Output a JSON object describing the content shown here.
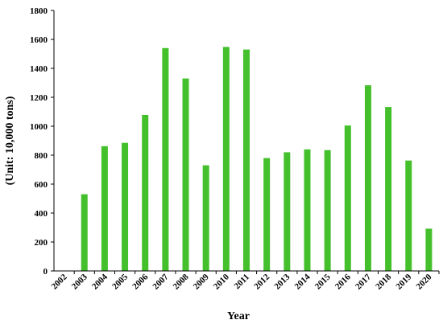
{
  "chart_data": {
    "type": "bar",
    "title": "",
    "xlabel": "Year",
    "ylabel": "(Unit: 10,000 tons)",
    "categories": [
      "2002",
      "2003",
      "2004",
      "2005",
      "2006",
      "2007",
      "2008",
      "2009",
      "2010",
      "2011",
      "2012",
      "2013",
      "2014",
      "2015",
      "2016",
      "2017",
      "2018",
      "2019",
      "2020"
    ],
    "values": [
      0,
      530,
      862,
      885,
      1078,
      1540,
      1330,
      730,
      1548,
      1530,
      780,
      820,
      840,
      835,
      1005,
      1283,
      1133,
      763,
      292
    ],
    "ylim": [
      0,
      1800
    ],
    "yticks": [
      0,
      200,
      400,
      600,
      800,
      1000,
      1200,
      1400,
      1600,
      1800
    ],
    "grid": false,
    "legend": "none",
    "bar_color": "#44c02c",
    "axis_color": "#000000"
  }
}
